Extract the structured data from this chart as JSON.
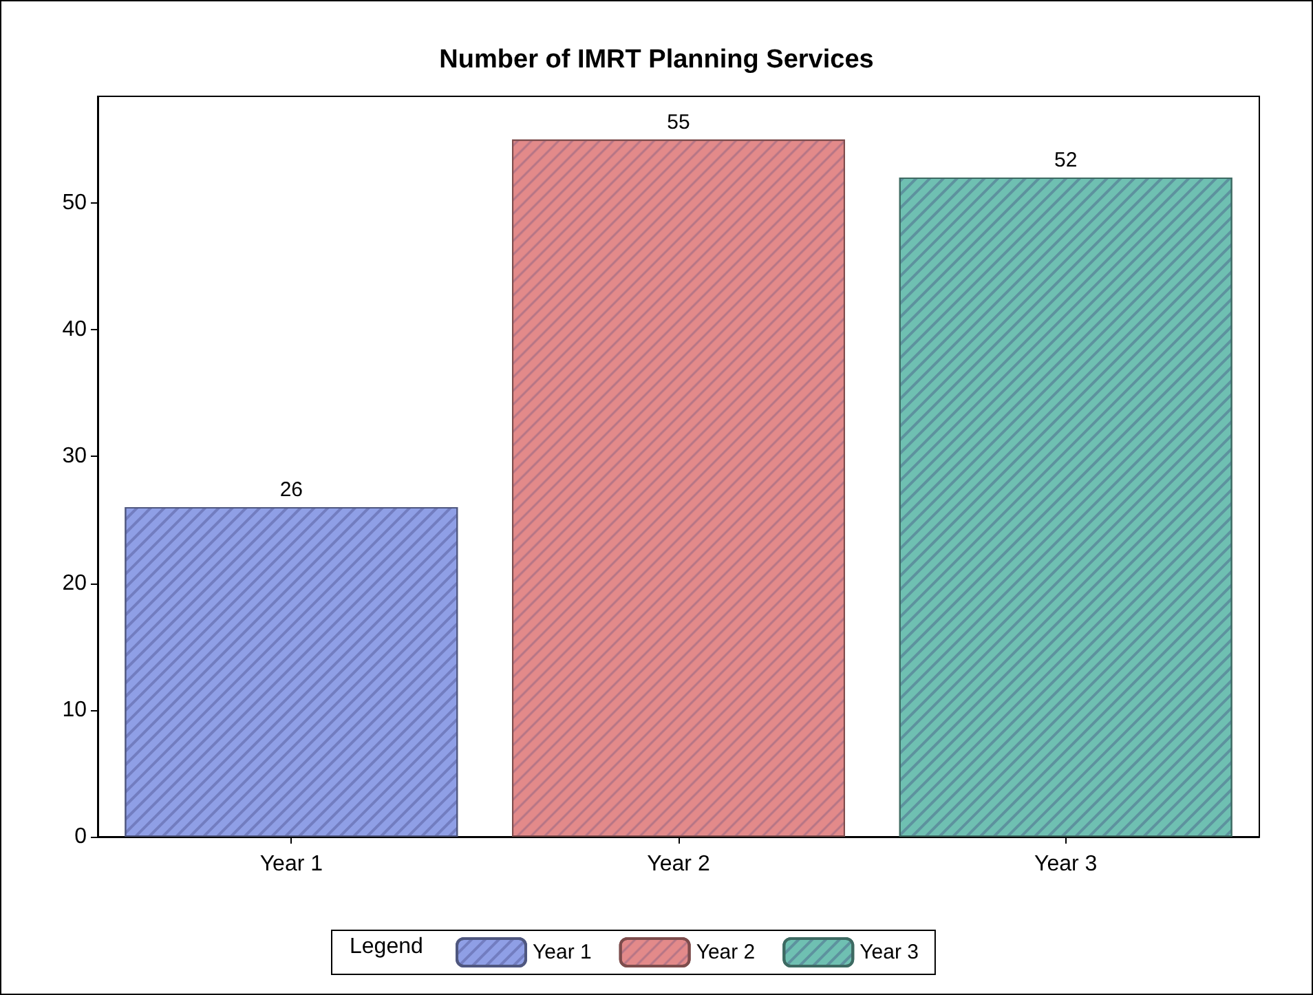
{
  "chart_data": {
    "type": "bar",
    "title": "Number of IMRT Planning Services",
    "categories": [
      "Year 1",
      "Year 2",
      "Year 3"
    ],
    "series": [
      {
        "name": "Year 1",
        "color": "#8f9fe6",
        "values": [
          26,
          null,
          null
        ]
      },
      {
        "name": "Year 2",
        "color": "#e38a8a",
        "values": [
          null,
          55,
          null
        ]
      },
      {
        "name": "Year 3",
        "color": "#6fc0b2",
        "values": [
          null,
          null,
          52
        ]
      }
    ],
    "ylim": [
      0,
      58.4
    ],
    "yticks": [
      0,
      10,
      20,
      30,
      40,
      50
    ],
    "grid": false,
    "legend": "bottom",
    "legend_title": "Legend",
    "data_labels": true
  }
}
